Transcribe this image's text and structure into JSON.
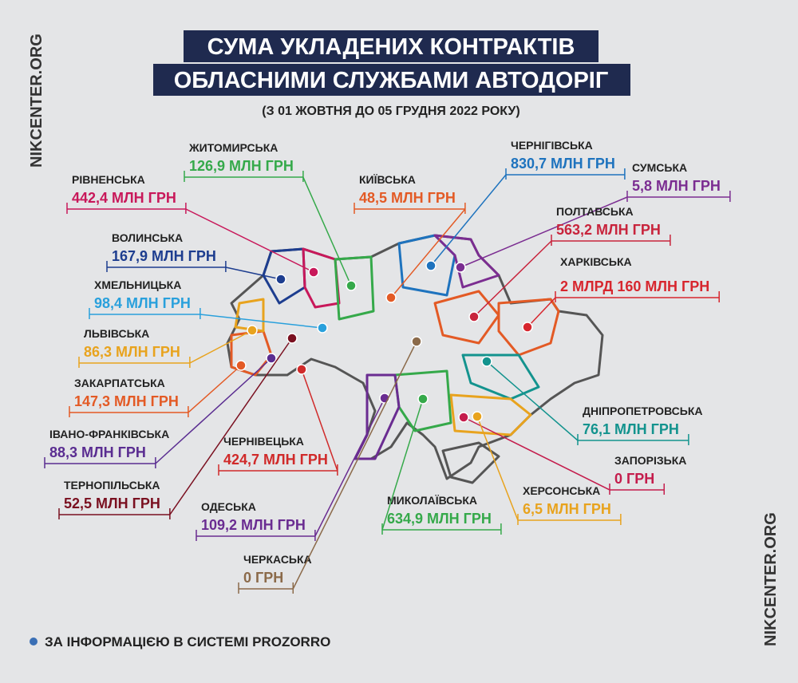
{
  "title_lines": [
    "СУМА УКЛАДЕНИХ КОНТРАКТІВ",
    "ОБЛАСНИМИ СЛУЖБАМИ АВТОДОРІГ"
  ],
  "subtitle": "(З 01 ЖОВТНЯ ДО 05 ГРУДНЯ 2022 РОКУ)",
  "watermark": "NIKCENTER.ORG",
  "regions": [
    {
      "name": "ЖИТОМИРСЬКА",
      "amount": "126,9 МЛН ГРН",
      "color": "#35a94a"
    },
    {
      "name": "РІВНЕНСЬКА",
      "amount": "442,4 МЛН ГРН",
      "color": "#c8185a"
    },
    {
      "name": "ВОЛИНСЬКА",
      "amount": "167,9 МЛН ГРН",
      "color": "#1d3d8f"
    },
    {
      "name": "ХМЕЛЬНИЦЬКА",
      "amount": "98,4 МЛН ГРН",
      "color": "#29a0dc"
    },
    {
      "name": "ЛЬВІВСЬКА",
      "amount": "86,3 МЛН ГРН",
      "color": "#e8a31e"
    },
    {
      "name": "ЗАКАРПАТСЬКА",
      "amount": "147,3 МЛН ГРН",
      "color": "#e35a25"
    },
    {
      "name": "ІВАНО-ФРАНКІВСЬКА",
      "amount": "88,3 МЛН ГРН",
      "color": "#5a2d91"
    },
    {
      "name": "ТЕРНОПІЛЬСЬКА",
      "amount": "52,5 МЛН ГРН",
      "color": "#7a1020"
    },
    {
      "name": "ЧЕРНІВЕЦЬКА",
      "amount": "424,7 МЛН ГРН",
      "color": "#d02a2a"
    },
    {
      "name": "ОДЕСЬКА",
      "amount": "109,2 МЛН ГРН",
      "color": "#6a2c91"
    },
    {
      "name": "ЧЕРКАСЬКА",
      "amount": "0 ГРН",
      "color": "#8b6a4a"
    },
    {
      "name": "КИЇВСЬКА",
      "amount": "48,5 МЛН ГРН",
      "color": "#e35a25"
    },
    {
      "name": "ЧЕРНІГІВСЬКА",
      "amount": "830,7 МЛН ГРН",
      "color": "#1e73be"
    },
    {
      "name": "СУМСЬКА",
      "amount": "5,8 МЛН ГРН",
      "color": "#7b2d91"
    },
    {
      "name": "ПОЛТАВСЬКА",
      "amount": "563,2 МЛН ГРН",
      "color": "#c8243c"
    },
    {
      "name": "ХАРКІВСЬКА",
      "amount": "2 МЛРД 160 МЛН ГРН",
      "color": "#d7262e"
    },
    {
      "name": "ДНІПРОПЕТРОВСЬКА",
      "amount": "76,1 МЛН ГРН",
      "color": "#13938e"
    },
    {
      "name": "ЗАПОРІЗЬКА",
      "amount": "0 ГРН",
      "color": "#c41c4c"
    },
    {
      "name": "ХЕРСОНСЬКА",
      "amount": "6,5 МЛН ГРН",
      "color": "#e8a31e"
    },
    {
      "name": "МИКОЛАЇВСЬКА",
      "amount": "634,9 МЛН ГРН",
      "color": "#35a94a"
    }
  ],
  "footnote": "ЗА ІНФОРМАЦІЄЮ В СИСТЕМІ PROZORRO"
}
